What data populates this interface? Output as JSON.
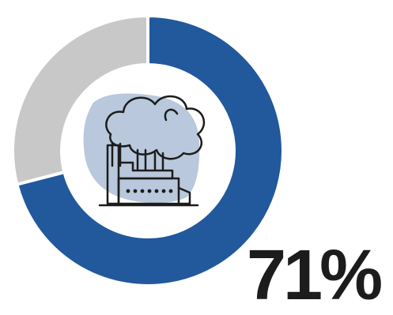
{
  "chart_data": {
    "type": "pie",
    "variant": "donut",
    "slices": [
      {
        "value": 71,
        "color": "#22589c"
      },
      {
        "value": 29,
        "color": "#c8c8c8"
      }
    ],
    "label": "71%",
    "center_icon": "factory-smoke-icon"
  },
  "colors": {
    "accent": "#22589c",
    "remainder": "#c8c8c8",
    "icon_backdrop": "#b9c8dc",
    "icon_stroke": "#1c1c1c",
    "text": "#1c1c1c"
  }
}
